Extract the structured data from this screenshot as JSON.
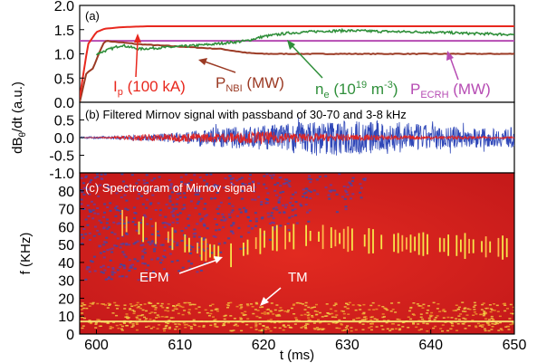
{
  "colors": {
    "ip": "#e8281e",
    "pnbi": "#9b3a24",
    "ne": "#2f8f3a",
    "pecrh": "#b64bb3",
    "mirnov_high": "#e02424",
    "mirnov_low": "#2f47b8",
    "arrow_white": "#ffffff"
  },
  "chart_data": [
    {
      "type": "line",
      "panel_label": "(a)",
      "xlim": [
        598,
        650
      ],
      "ylim": [
        0,
        2
      ],
      "yticks": [
        "0.0",
        "0.5",
        "1.0",
        "1.5",
        "2.0"
      ],
      "series": [
        {
          "key": "ip",
          "name": "Ip (100 kA)",
          "x": [
            598,
            599,
            600,
            601,
            603,
            606,
            650
          ],
          "values": [
            0.1,
            1.2,
            1.45,
            1.52,
            1.55,
            1.57,
            1.57
          ]
        },
        {
          "key": "pnbi",
          "name": "PNBI (MW)",
          "x": [
            598,
            598.8,
            599.6,
            600.4,
            601,
            605,
            610,
            615,
            618,
            620,
            650
          ],
          "values": [
            0.0,
            0.6,
            0.7,
            1.05,
            1.27,
            1.2,
            1.15,
            1.1,
            1.02,
            1.0,
            1.0
          ]
        },
        {
          "key": "ne",
          "name": "ne (10^19 m^-3)",
          "x": [
            600,
            603,
            605,
            610,
            614,
            618,
            620,
            623,
            627,
            630,
            635,
            640,
            645,
            650
          ],
          "values": [
            1.0,
            1.18,
            1.1,
            1.15,
            1.2,
            1.27,
            1.36,
            1.43,
            1.47,
            1.48,
            1.46,
            1.45,
            1.42,
            1.4
          ]
        },
        {
          "key": "pecrh",
          "name": "PECRH (MW)",
          "x": [
            598,
            650
          ],
          "values": [
            1.27,
            1.27
          ]
        }
      ],
      "annotations": {
        "ip_main": "I",
        "ip_sub": "p",
        "ip_tail": " (100 kA)",
        "pnbi_main": "P",
        "pnbi_sub": "NBI",
        "pnbi_tail": " (MW)",
        "ne_main": "n",
        "ne_sub": "e",
        "ne_mid": " (10",
        "ne_sup1": "19",
        "ne_mid2": " m",
        "ne_sup2": "-3",
        "ne_tail": ")",
        "pecrh_main": "P",
        "pecrh_sub": "ECRH",
        "pecrh_tail": " (MW)"
      }
    },
    {
      "type": "line",
      "panel_label": "(b)",
      "title": "Filtered Mirnov signal with passband of 30-70 and 3-8 kHz",
      "xlim": [
        598,
        650
      ],
      "ylim": [
        -1,
        1
      ],
      "yticks": [
        "-1.0",
        "-0.5",
        "0.0",
        "0.5"
      ],
      "ylabel_main": "dB",
      "ylabel_sub": "θ",
      "ylabel_tail": "/dt (a.u.)",
      "series": [
        {
          "key": "mirnov_low",
          "name": "3-8 kHz band",
          "envelope_x": [
            598,
            603,
            607,
            612,
            616,
            620,
            624,
            628,
            632,
            636,
            640,
            644,
            648,
            650
          ],
          "envelope_values": [
            0.02,
            0.05,
            0.1,
            0.2,
            0.3,
            0.35,
            0.45,
            0.5,
            0.5,
            0.45,
            0.35,
            0.3,
            0.25,
            0.3
          ]
        },
        {
          "key": "mirnov_high",
          "name": "30-70 kHz band",
          "envelope_x": [
            598,
            602,
            605,
            610,
            615,
            620,
            625,
            630,
            635,
            640,
            645,
            650
          ],
          "envelope_values": [
            0.0,
            0.02,
            0.1,
            0.12,
            0.14,
            0.18,
            0.12,
            0.1,
            0.07,
            0.05,
            0.04,
            0.03
          ]
        }
      ]
    },
    {
      "type": "heatmap",
      "panel_label": "(c)",
      "title": "Spectrogram of Mirnov signal",
      "xlim": [
        598,
        650
      ],
      "ylim": [
        0,
        90
      ],
      "xticks": [
        "600",
        "610",
        "620",
        "630",
        "640",
        "650"
      ],
      "yticks": [
        "0",
        "10",
        "20",
        "30",
        "40",
        "50",
        "60",
        "70",
        "80"
      ],
      "xlabel": "t (ms)",
      "ylabel": "f (KHz)",
      "modes": [
        {
          "label": "EPM",
          "x": [
            603,
            608,
            612,
            616,
            620,
            625,
            630,
            635,
            640,
            645,
            650
          ],
          "f": [
            62,
            55,
            48,
            44,
            53,
            55,
            53,
            51,
            50,
            49,
            48
          ]
        },
        {
          "label": "TM",
          "x": [
            598,
            650
          ],
          "f": [
            7,
            7
          ]
        }
      ],
      "annotations": {
        "epm": "EPM",
        "tm": "TM"
      }
    }
  ]
}
